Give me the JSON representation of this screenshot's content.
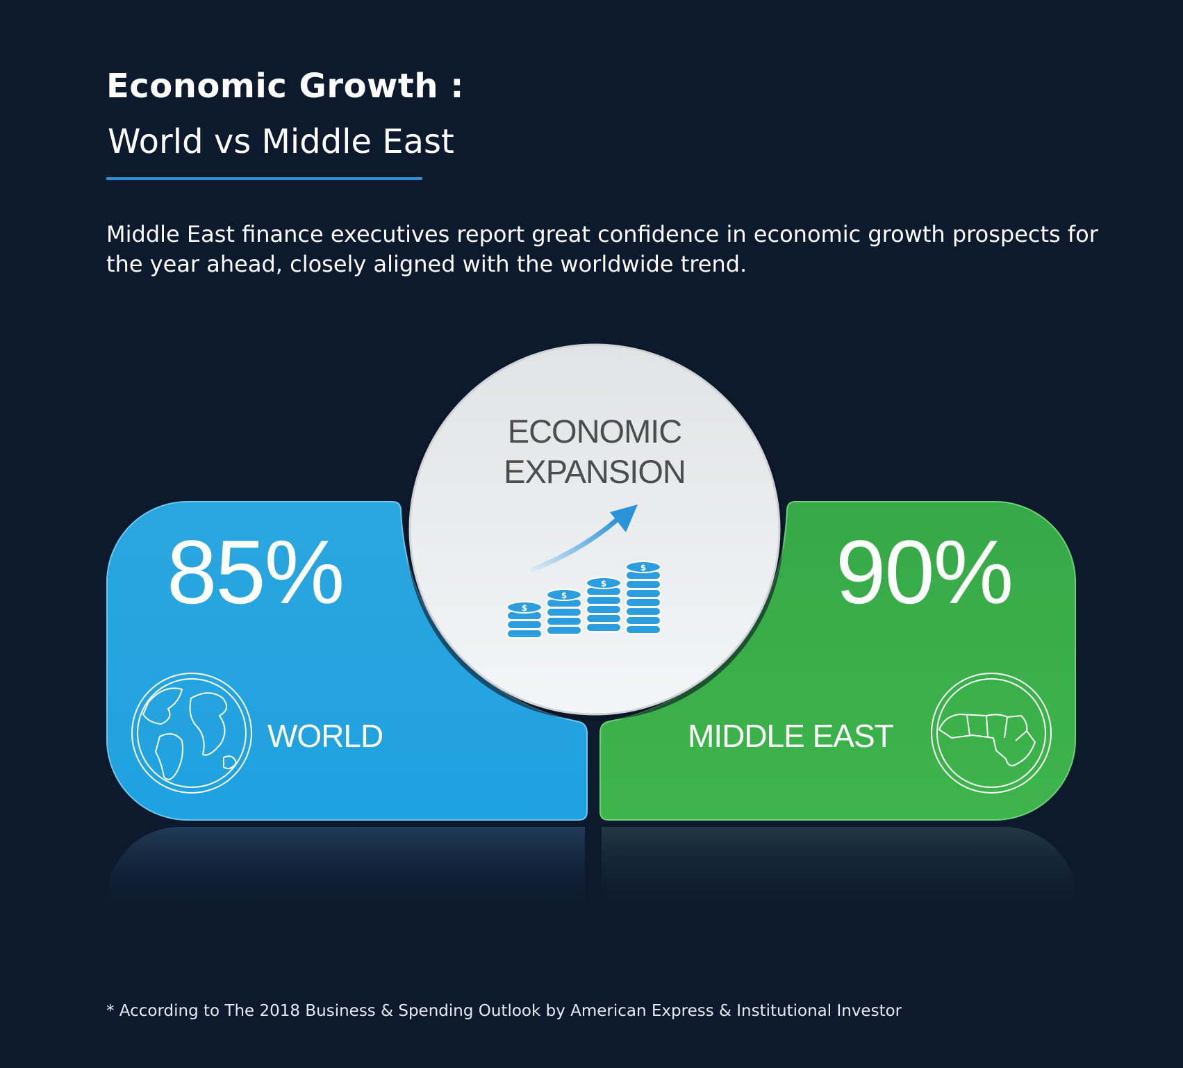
{
  "header": {
    "title": "Economic Growth :",
    "subtitle": "World vs Middle East"
  },
  "intro": "Middle East finance executives report great confidence in economic growth prospects for the year ahead, closely aligned with the worldwide trend.",
  "center": {
    "line1": "ECONOMIC",
    "line2": "EXPANSION",
    "icon": "coins-growth-arrow-icon"
  },
  "world": {
    "value": "85%",
    "label": "WORLD",
    "icon": "globe-icon",
    "color": "#23a8e0"
  },
  "middle_east": {
    "value": "90%",
    "label": "MIDDLE EAST",
    "icon": "middle-east-map-icon",
    "color": "#3ab54a"
  },
  "footnote": "* According to The 2018 Business & Spending Outlook by American Express & Institutional Investor"
}
